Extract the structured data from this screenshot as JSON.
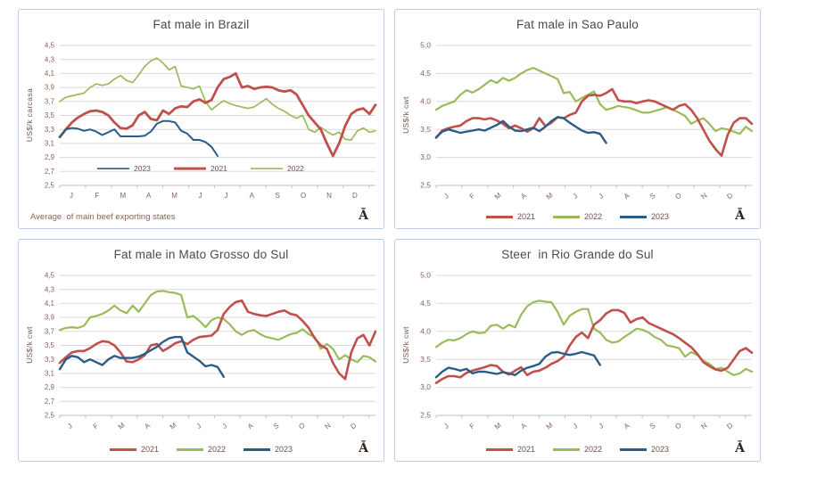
{
  "page": {
    "background": "#ffffff"
  },
  "logo_glyph": "Ā",
  "colors": {
    "red_2021": "#C0504D",
    "green_2022": "#9BBB59",
    "navy_2023": "#2A5C88",
    "grid": "#D9D9D9",
    "axis_line": "#BFBFBF",
    "axis_text": "#8C5F55",
    "title_text": "#4C4A48",
    "panel_border": "#B9CDE5",
    "legend_text": "#6F4F47",
    "logo": "#33241C"
  },
  "chart_data": [
    {
      "type": "line",
      "title": "Fat male in Brazil",
      "ylabel": "US$/k carcasa",
      "note": "Average  of main beef exporting states",
      "ylim": [
        2.5,
        4.5
      ],
      "ytick_labels": [
        "4,5",
        "4,3",
        "4,1",
        "3,9",
        "3,7",
        "3,5",
        "3,3",
        "3,1",
        "2,9",
        "2,7",
        "2,5"
      ],
      "ytick_values": [
        4.5,
        4.3,
        4.1,
        3.9,
        3.7,
        3.5,
        3.3,
        3.1,
        2.9,
        2.7,
        2.5
      ],
      "x_labels": [
        "J",
        "F",
        "M",
        "A",
        "M",
        "J",
        "J",
        "A",
        "S",
        "O",
        "N",
        "D"
      ],
      "x_labels_rotated": false,
      "grid": true,
      "legend_position": "inside-bottom-left",
      "legend_order": [
        "2023",
        "2021",
        "2022"
      ],
      "series": [
        {
          "name": "2022",
          "color_key": "green_2022",
          "width": 1.7,
          "values": [
            3.7,
            3.76,
            3.78,
            3.8,
            3.82,
            3.9,
            3.95,
            3.93,
            3.95,
            4.02,
            4.07,
            4.0,
            3.97,
            4.08,
            4.2,
            4.28,
            4.32,
            4.25,
            4.15,
            4.2,
            3.92,
            3.9,
            3.88,
            3.92,
            3.7,
            3.58,
            3.65,
            3.71,
            3.67,
            3.64,
            3.62,
            3.6,
            3.62,
            3.68,
            3.74,
            3.66,
            3.6,
            3.56,
            3.5,
            3.46,
            3.5,
            3.3,
            3.26,
            3.33,
            3.27,
            3.22,
            3.26,
            3.16,
            3.15,
            3.28,
            3.32,
            3.26,
            3.28
          ]
        },
        {
          "name": "2021",
          "color_key": "red_2021",
          "width": 2.8,
          "values": [
            3.19,
            3.3,
            3.4,
            3.47,
            3.52,
            3.56,
            3.57,
            3.55,
            3.5,
            3.4,
            3.32,
            3.31,
            3.36,
            3.5,
            3.55,
            3.45,
            3.43,
            3.57,
            3.52,
            3.6,
            3.63,
            3.62,
            3.7,
            3.73,
            3.68,
            3.72,
            3.9,
            4.02,
            4.05,
            4.1,
            3.9,
            3.92,
            3.88,
            3.9,
            3.91,
            3.9,
            3.86,
            3.84,
            3.86,
            3.8,
            3.65,
            3.5,
            3.4,
            3.3,
            3.1,
            2.92,
            3.1,
            3.35,
            3.52,
            3.58,
            3.6,
            3.52,
            3.65
          ]
        },
        {
          "name": "2023",
          "color_key": "navy_2023",
          "width": 2.0,
          "values": [
            3.19,
            3.3,
            3.32,
            3.31,
            3.28,
            3.3,
            3.27,
            3.22,
            3.26,
            3.3,
            3.2,
            3.2,
            3.2,
            3.2,
            3.21,
            3.27,
            3.38,
            3.42,
            3.42,
            3.4,
            3.28,
            3.24,
            3.15,
            3.15,
            3.12,
            3.05,
            2.92
          ]
        }
      ]
    },
    {
      "type": "line",
      "title": "Fat male in Sao Paulo",
      "ylabel": "US$/k cwt",
      "note": "",
      "ylim": [
        2.5,
        5.0
      ],
      "ytick_labels": [
        "5,0",
        "4,5",
        "4,0",
        "3,5",
        "3,0",
        "2,5"
      ],
      "ytick_values": [
        5.0,
        4.5,
        4.0,
        3.5,
        3.0,
        2.5
      ],
      "x_labels": [
        "J",
        "F",
        "M",
        "A",
        "M",
        "J",
        "J",
        "A",
        "S",
        "O",
        "N",
        "D"
      ],
      "x_labels_rotated": true,
      "grid": true,
      "legend_position": "below",
      "legend_order": [
        "2021",
        "2022",
        "2023"
      ],
      "series": [
        {
          "name": "2022",
          "color_key": "green_2022",
          "width": 2.2,
          "values": [
            3.85,
            3.92,
            3.96,
            4.0,
            4.12,
            4.2,
            4.16,
            4.22,
            4.3,
            4.38,
            4.33,
            4.42,
            4.37,
            4.42,
            4.5,
            4.56,
            4.6,
            4.55,
            4.5,
            4.45,
            4.4,
            4.15,
            4.17,
            4.0,
            4.06,
            4.12,
            4.18,
            3.95,
            3.85,
            3.88,
            3.92,
            3.9,
            3.88,
            3.84,
            3.8,
            3.8,
            3.83,
            3.86,
            3.9,
            3.85,
            3.8,
            3.74,
            3.6,
            3.66,
            3.7,
            3.6,
            3.47,
            3.52,
            3.5,
            3.46,
            3.42,
            3.55,
            3.47
          ]
        },
        {
          "name": "2021",
          "color_key": "red_2021",
          "width": 2.6,
          "values": [
            3.35,
            3.48,
            3.52,
            3.55,
            3.57,
            3.65,
            3.7,
            3.7,
            3.68,
            3.7,
            3.66,
            3.6,
            3.52,
            3.57,
            3.52,
            3.46,
            3.52,
            3.7,
            3.56,
            3.62,
            3.72,
            3.7,
            3.76,
            3.8,
            4.0,
            4.1,
            4.12,
            4.1,
            4.15,
            4.22,
            4.02,
            4.0,
            4.0,
            3.97,
            4.0,
            4.02,
            4.0,
            3.95,
            3.9,
            3.85,
            3.92,
            3.95,
            3.85,
            3.7,
            3.5,
            3.3,
            3.15,
            3.03,
            3.4,
            3.62,
            3.7,
            3.7,
            3.6
          ]
        },
        {
          "name": "2023",
          "color_key": "navy_2023",
          "width": 2.4,
          "values": [
            3.36,
            3.46,
            3.5,
            3.47,
            3.44,
            3.46,
            3.48,
            3.5,
            3.48,
            3.53,
            3.58,
            3.65,
            3.55,
            3.48,
            3.47,
            3.5,
            3.53,
            3.47,
            3.55,
            3.65,
            3.72,
            3.7,
            3.62,
            3.55,
            3.48,
            3.44,
            3.45,
            3.42,
            3.26
          ]
        }
      ]
    },
    {
      "type": "line",
      "title": "Fat male in Mato Grosso do Sul",
      "ylabel": "US$/k cwt",
      "note": "",
      "ylim": [
        2.5,
        4.5
      ],
      "ytick_labels": [
        "4,5",
        "4,3",
        "4,1",
        "3,9",
        "3,7",
        "3,5",
        "3,3",
        "3,1",
        "2,9",
        "2,7",
        "2,5"
      ],
      "ytick_values": [
        4.5,
        4.3,
        4.1,
        3.9,
        3.7,
        3.5,
        3.3,
        3.1,
        2.9,
        2.7,
        2.5
      ],
      "x_labels": [
        "J",
        "F",
        "M",
        "A",
        "M",
        "J",
        "J",
        "A",
        "S",
        "O",
        "N",
        "D"
      ],
      "x_labels_rotated": true,
      "grid": true,
      "legend_position": "below",
      "legend_order": [
        "2021",
        "2022",
        "2023"
      ],
      "series": [
        {
          "name": "2022",
          "color_key": "green_2022",
          "width": 2.2,
          "values": [
            3.72,
            3.75,
            3.76,
            3.75,
            3.78,
            3.9,
            3.92,
            3.95,
            4.0,
            4.07,
            4.0,
            3.96,
            4.07,
            3.98,
            4.1,
            4.22,
            4.27,
            4.28,
            4.26,
            4.25,
            4.22,
            3.9,
            3.92,
            3.85,
            3.76,
            3.86,
            3.9,
            3.88,
            3.8,
            3.7,
            3.65,
            3.7,
            3.72,
            3.66,
            3.62,
            3.6,
            3.58,
            3.62,
            3.66,
            3.68,
            3.73,
            3.66,
            3.62,
            3.45,
            3.52,
            3.45,
            3.3,
            3.36,
            3.3,
            3.26,
            3.35,
            3.33,
            3.27
          ]
        },
        {
          "name": "2021",
          "color_key": "red_2021",
          "width": 2.6,
          "values": [
            3.25,
            3.33,
            3.4,
            3.42,
            3.42,
            3.46,
            3.52,
            3.56,
            3.55,
            3.5,
            3.4,
            3.27,
            3.26,
            3.3,
            3.36,
            3.5,
            3.52,
            3.42,
            3.47,
            3.53,
            3.56,
            3.52,
            3.58,
            3.62,
            3.63,
            3.64,
            3.72,
            3.95,
            4.05,
            4.12,
            4.14,
            3.98,
            3.95,
            3.93,
            3.92,
            3.95,
            3.98,
            4.0,
            3.95,
            3.93,
            3.85,
            3.75,
            3.6,
            3.5,
            3.45,
            3.25,
            3.1,
            3.02,
            3.4,
            3.6,
            3.65,
            3.5,
            3.7
          ]
        },
        {
          "name": "2023",
          "color_key": "navy_2023",
          "width": 2.4,
          "values": [
            3.16,
            3.3,
            3.35,
            3.33,
            3.26,
            3.3,
            3.26,
            3.22,
            3.3,
            3.35,
            3.32,
            3.32,
            3.32,
            3.34,
            3.38,
            3.43,
            3.48,
            3.55,
            3.6,
            3.62,
            3.62,
            3.4,
            3.34,
            3.28,
            3.2,
            3.22,
            3.19,
            3.05
          ]
        }
      ]
    },
    {
      "type": "line",
      "title": "Steer  in Rio Grande do Sul",
      "ylabel": "US$/k cwt",
      "note": "",
      "ylim": [
        2.5,
        5.0
      ],
      "ytick_labels": [
        "5,0",
        "4,5",
        "4,0",
        "3,5",
        "3,0",
        "2,5"
      ],
      "ytick_values": [
        5.0,
        4.5,
        4.0,
        3.5,
        3.0,
        2.5
      ],
      "x_labels": [
        "J",
        "F",
        "M",
        "A",
        "M",
        "J",
        "J",
        "A",
        "S",
        "O",
        "N",
        "D"
      ],
      "x_labels_rotated": true,
      "grid": true,
      "legend_position": "below",
      "legend_order": [
        "2021",
        "2022",
        "2023"
      ],
      "series": [
        {
          "name": "2022",
          "color_key": "green_2022",
          "width": 2.2,
          "values": [
            3.72,
            3.8,
            3.85,
            3.84,
            3.88,
            3.95,
            4.0,
            3.97,
            3.98,
            4.1,
            4.12,
            4.05,
            4.12,
            4.07,
            4.3,
            4.45,
            4.52,
            4.55,
            4.53,
            4.52,
            4.35,
            4.12,
            4.28,
            4.35,
            4.4,
            4.4,
            4.05,
            3.98,
            3.85,
            3.8,
            3.82,
            3.9,
            3.97,
            4.05,
            4.03,
            3.98,
            3.9,
            3.85,
            3.75,
            3.73,
            3.7,
            3.55,
            3.63,
            3.58,
            3.48,
            3.42,
            3.33,
            3.35,
            3.28,
            3.22,
            3.25,
            3.33,
            3.28
          ]
        },
        {
          "name": "2021",
          "color_key": "red_2021",
          "width": 2.6,
          "values": [
            3.08,
            3.15,
            3.2,
            3.2,
            3.18,
            3.26,
            3.3,
            3.33,
            3.36,
            3.4,
            3.38,
            3.28,
            3.23,
            3.3,
            3.36,
            3.22,
            3.28,
            3.3,
            3.35,
            3.42,
            3.47,
            3.55,
            3.75,
            3.9,
            3.98,
            3.88,
            4.12,
            4.2,
            4.32,
            4.38,
            4.38,
            4.33,
            4.16,
            4.22,
            4.25,
            4.15,
            4.1,
            4.05,
            4.0,
            3.95,
            3.88,
            3.8,
            3.72,
            3.6,
            3.45,
            3.38,
            3.32,
            3.3,
            3.35,
            3.5,
            3.65,
            3.7,
            3.62
          ]
        },
        {
          "name": "2023",
          "color_key": "navy_2023",
          "width": 2.4,
          "values": [
            3.18,
            3.28,
            3.35,
            3.33,
            3.3,
            3.33,
            3.25,
            3.28,
            3.28,
            3.26,
            3.24,
            3.27,
            3.25,
            3.22,
            3.3,
            3.35,
            3.38,
            3.42,
            3.55,
            3.62,
            3.63,
            3.6,
            3.58,
            3.6,
            3.63,
            3.6,
            3.57,
            3.4
          ]
        }
      ]
    }
  ]
}
